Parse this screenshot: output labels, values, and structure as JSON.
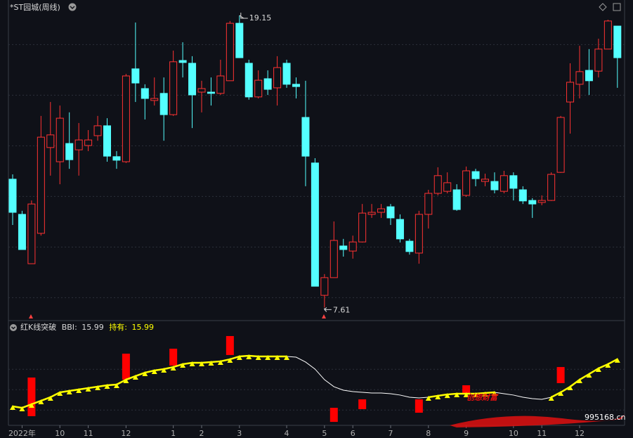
{
  "chart_data": [
    {
      "type": "candlestick",
      "title": "*ST园城(周线)",
      "categories": [
        null,
        "2022年",
        null,
        null,
        null,
        "10",
        null,
        null,
        "11",
        null,
        null,
        null,
        "12",
        null,
        null,
        null,
        null,
        "1",
        null,
        null,
        "2",
        null,
        null,
        null,
        "3",
        null,
        null,
        null,
        null,
        "4",
        null,
        null,
        null,
        "5",
        null,
        null,
        "6",
        null,
        null,
        null,
        "7",
        null,
        null,
        null,
        "8",
        null,
        null,
        null,
        "9",
        null,
        null,
        null,
        null,
        "10",
        null,
        null,
        "11",
        null,
        null,
        null,
        "12",
        null,
        null,
        null,
        null
      ],
      "open": [
        12.68,
        11.29,
        9.34,
        10.54,
        13.93,
        13.37,
        14.09,
        13.84,
        14.01,
        14.4,
        14.79,
        13.57,
        13.37,
        17.04,
        16.26,
        15.79,
        16.07,
        15.23,
        17.37,
        17.26,
        16.12,
        16.12,
        16.07,
        16.57,
        18.84,
        17.26,
        15.93,
        16.65,
        16.29,
        17.26,
        16.43,
        15.12,
        13.32,
        8.09,
        8.79,
        10.04,
        9.84,
        10.2,
        11.29,
        11.37,
        11.59,
        11.09,
        10.23,
        9.76,
        11.29,
        12.12,
        12.2,
        12.26,
        12.04,
        12.98,
        12.59,
        12.59,
        12.2,
        12.82,
        12.26,
        11.84,
        11.76,
        11.84,
        12.95,
        15.73,
        16.43,
        16.98,
        16.95,
        17.82,
        18.73
      ],
      "high": [
        12.87,
        11.43,
        11.84,
        15.18,
        15.73,
        15.59,
        15.32,
        14.9,
        14.62,
        15.18,
        15.09,
        13.79,
        16.84,
        18.87,
        16.43,
        16.7,
        16.7,
        17.76,
        18.09,
        17.54,
        16.57,
        16.7,
        17.4,
        18.93,
        19.15,
        17.4,
        16.98,
        16.98,
        17.54,
        17.4,
        16.7,
        16.57,
        13.51,
        8.93,
        11.01,
        10.32,
        10.45,
        11.7,
        11.7,
        11.7,
        11.7,
        11.29,
        10.32,
        11.43,
        12.26,
        13.15,
        12.95,
        12.48,
        13.18,
        13.09,
        12.9,
        12.95,
        13.01,
        12.95,
        12.4,
        11.93,
        12.04,
        12.95,
        15.18,
        17.26,
        17.95,
        17.82,
        18.23,
        18.98,
        18.73
      ],
      "low": [
        10.87,
        9.9,
        9.34,
        10.45,
        12.82,
        12.48,
        13.09,
        12.82,
        13.79,
        14.2,
        13.37,
        13.09,
        13.32,
        15.73,
        15.04,
        15.59,
        14.2,
        15.18,
        16.7,
        14.7,
        15.32,
        15.59,
        16.01,
        16.57,
        17.48,
        15.82,
        15.87,
        16.01,
        15.59,
        16.29,
        15.87,
        12.4,
        8.45,
        7.61,
        8.79,
        9.62,
        9.54,
        10.18,
        11.15,
        11.15,
        10.87,
        10.18,
        9.7,
        9.34,
        10.73,
        12.04,
        12.12,
        11.43,
        11.98,
        12.4,
        12.4,
        12.12,
        12.12,
        11.84,
        11.7,
        11.15,
        11.65,
        11.82,
        12.93,
        14.48,
        15.87,
        16.01,
        16.7,
        17.82,
        16.29
      ],
      "close": [
        11.37,
        9.9,
        11.7,
        14.34,
        14.43,
        15.09,
        13.45,
        14.23,
        14.23,
        14.79,
        13.59,
        13.43,
        16.76,
        16.48,
        15.87,
        15.87,
        15.23,
        17.32,
        17.29,
        16.01,
        16.26,
        16.07,
        16.76,
        18.84,
        17.48,
        15.93,
        16.59,
        16.23,
        17.09,
        16.43,
        16.34,
        13.59,
        8.45,
        8.79,
        10.26,
        9.9,
        10.2,
        11.34,
        11.37,
        11.51,
        11.15,
        10.32,
        9.82,
        11.29,
        12.12,
        12.82,
        12.54,
        11.48,
        13.01,
        12.7,
        12.68,
        12.26,
        12.82,
        12.32,
        11.82,
        11.7,
        11.84,
        12.87,
        15.12,
        16.51,
        16.93,
        16.57,
        17.82,
        18.93,
        17.48
      ],
      "ylim": [
        7.12,
        19.76
      ],
      "ygrid": [
        8,
        10,
        12,
        14,
        16,
        18
      ],
      "up_color": "#ff3232",
      "down_color": "#54ffff"
    },
    {
      "type": "indicator",
      "title": "红K线突破",
      "series": [
        {
          "name": "BBI",
          "color": "#ffffff",
          "values": [
            11.36,
            11.22,
            11.57,
            11.91,
            12.26,
            12.74,
            12.88,
            13.02,
            13.16,
            13.29,
            13.43,
            13.5,
            13.98,
            14.33,
            14.67,
            14.88,
            15.02,
            15.22,
            15.5,
            15.64,
            15.64,
            15.71,
            15.78,
            15.98,
            16.26,
            16.33,
            16.26,
            16.26,
            16.26,
            16.26,
            16.19,
            15.71,
            15.02,
            13.98,
            13.29,
            12.95,
            12.81,
            12.74,
            12.67,
            12.67,
            12.6,
            12.47,
            12.26,
            12.19,
            12.26,
            12.4,
            12.53,
            12.6,
            12.6,
            12.6,
            12.67,
            12.74,
            12.6,
            12.47,
            12.26,
            12.12,
            12.05,
            12.26,
            12.74,
            13.29,
            13.98,
            14.53,
            15.09,
            15.5,
            15.99
          ]
        }
      ],
      "hold_label": "持有",
      "hold_color": "#ffff00",
      "holding": [
        true,
        true,
        true,
        true,
        true,
        true,
        true,
        true,
        true,
        true,
        true,
        true,
        true,
        true,
        true,
        true,
        true,
        true,
        true,
        true,
        true,
        true,
        true,
        true,
        true,
        true,
        true,
        true,
        true,
        true,
        false,
        false,
        false,
        false,
        false,
        false,
        false,
        false,
        false,
        false,
        false,
        false,
        false,
        false,
        true,
        true,
        true,
        true,
        true,
        true,
        true,
        true,
        false,
        false,
        false,
        false,
        false,
        true,
        true,
        true,
        true,
        true,
        true,
        true,
        true
      ],
      "signals": {
        "index": [
          2,
          12,
          17,
          23,
          34,
          37,
          43,
          48,
          58
        ],
        "low": [
          10.4,
          13.98,
          15.36,
          16.4,
          9.84,
          11.09,
          10.74,
          12.6,
          13.64
        ],
        "high": [
          14.19,
          16.53,
          17.02,
          18.26,
          11.22,
          12.05,
          12.05,
          13.43,
          15.22
        ]
      },
      "signal_color": "#ff0000",
      "ylim": [
        9.5,
        19.5
      ],
      "ygrid": [
        11,
        13,
        15
      ]
    }
  ],
  "watermark": {
    "text": "创想财富",
    "url": "995168.cn"
  }
}
